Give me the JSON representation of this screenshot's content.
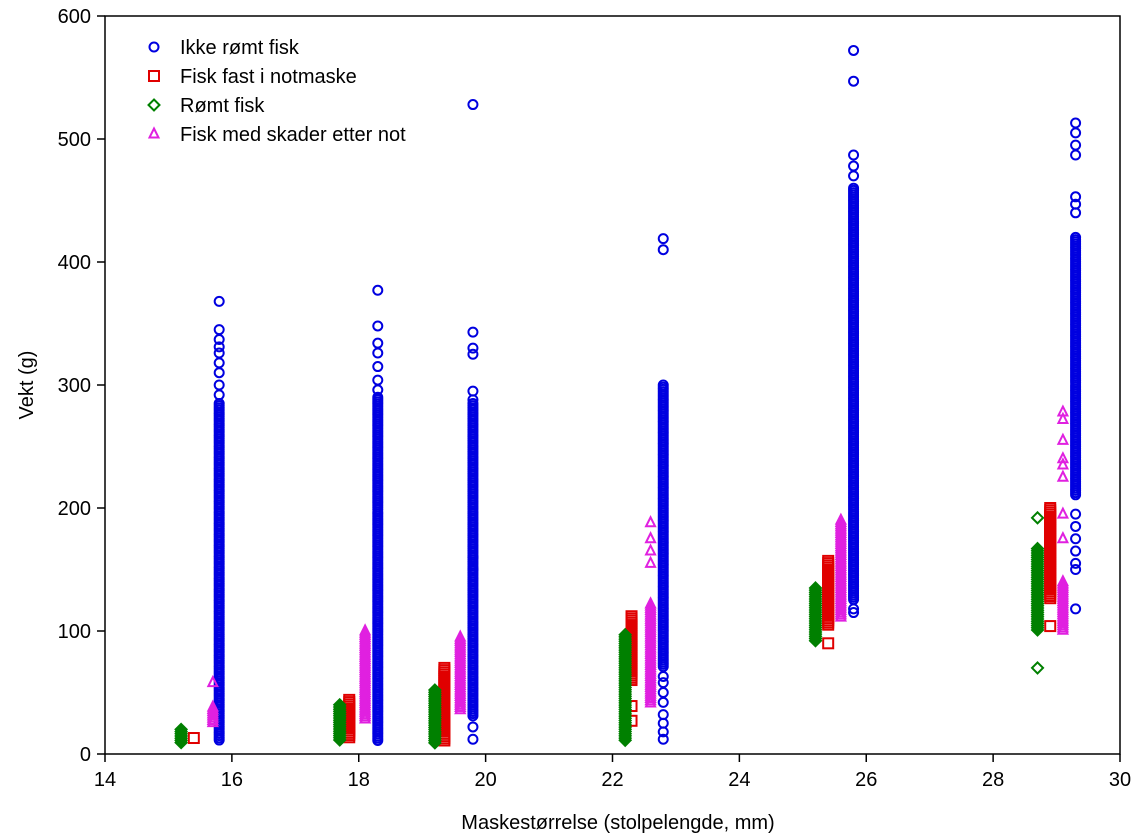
{
  "chart_data": {
    "type": "scatter",
    "title": "",
    "xlabel": "Maskestørrelse (stolpelengde, mm)",
    "ylabel": "Vekt (g)",
    "xlim": [
      14,
      30
    ],
    "ylim": [
      0,
      600
    ],
    "xticks": [
      "14",
      "16",
      "18",
      "20",
      "22",
      "24",
      "26",
      "28",
      "30"
    ],
    "yticks": [
      "0",
      "100",
      "200",
      "300",
      "400",
      "500",
      "600"
    ],
    "grid": false,
    "legend_position": "top-left",
    "series": [
      {
        "name": "Ikke rømt fisk",
        "marker": "circle",
        "color": "#0000e0",
        "groups": [
          {
            "x": 15.8,
            "y_min": 10,
            "y_max": 285,
            "outliers": [
              292,
              300,
              310,
              318,
              326,
              331,
              337,
              345,
              368
            ]
          },
          {
            "x": 18.3,
            "y_min": 10,
            "y_max": 290,
            "outliers": [
              296,
              304,
              315,
              326,
              334,
              348,
              377
            ]
          },
          {
            "x": 19.8,
            "y_min": 30,
            "y_max": 285,
            "outliers": [
              12,
              22,
              150,
              160,
              288,
              295,
              325,
              330,
              343,
              528
            ]
          },
          {
            "x": 22.8,
            "y_min": 70,
            "y_max": 300,
            "outliers": [
              12,
              18,
              25,
              32,
              42,
              50,
              58,
              63,
              410,
              419
            ]
          },
          {
            "x": 25.8,
            "y_min": 125,
            "y_max": 460,
            "outliers": [
              115,
              118,
              470,
              478,
              487,
              547,
              572
            ]
          },
          {
            "x": 29.3,
            "y_min": 210,
            "y_max": 420,
            "outliers": [
              118,
              150,
              155,
              165,
              175,
              185,
              195,
              440,
              447,
              453,
              487,
              495,
              505,
              513
            ]
          }
        ]
      },
      {
        "name": "Fisk fast i notmaske",
        "marker": "square",
        "color": "#e00000",
        "groups": [
          {
            "x": 15.4,
            "y_min": 13,
            "y_max": 13,
            "outliers": []
          },
          {
            "x": 17.85,
            "y_min": 13,
            "y_max": 44,
            "outliers": []
          },
          {
            "x": 19.35,
            "y_min": 10,
            "y_max": 70,
            "outliers": []
          },
          {
            "x": 22.3,
            "y_min": 60,
            "y_max": 112,
            "outliers": [
              27,
              39
            ]
          },
          {
            "x": 25.4,
            "y_min": 105,
            "y_max": 157,
            "outliers": [
              90
            ]
          },
          {
            "x": 28.9,
            "y_min": 125,
            "y_max": 200,
            "outliers": [
              104
            ]
          }
        ]
      },
      {
        "name": "Rømt fisk",
        "marker": "diamond",
        "color": "#008000",
        "groups": [
          {
            "x": 15.2,
            "y_min": 8,
            "y_max": 20,
            "outliers": []
          },
          {
            "x": 17.7,
            "y_min": 10,
            "y_max": 40,
            "outliers": []
          },
          {
            "x": 19.2,
            "y_min": 8,
            "y_max": 52,
            "outliers": []
          },
          {
            "x": 22.2,
            "y_min": 10,
            "y_max": 97,
            "outliers": []
          },
          {
            "x": 25.2,
            "y_min": 92,
            "y_max": 135,
            "outliers": []
          },
          {
            "x": 28.7,
            "y_min": 100,
            "y_max": 167,
            "outliers": [
              70,
              192
            ]
          }
        ]
      },
      {
        "name": "Fisk med skader etter not",
        "marker": "triangle",
        "color": "#e020e0",
        "groups": [
          {
            "x": 15.7,
            "y_min": 25,
            "y_max": 38,
            "outliers": [
              58
            ]
          },
          {
            "x": 18.1,
            "y_min": 27,
            "y_max": 100,
            "outliers": []
          },
          {
            "x": 19.6,
            "y_min": 35,
            "y_max": 95,
            "outliers": []
          },
          {
            "x": 22.6,
            "y_min": 40,
            "y_max": 122,
            "outliers": [
              155,
              165,
              175,
              188
            ]
          },
          {
            "x": 25.6,
            "y_min": 110,
            "y_max": 190,
            "outliers": []
          },
          {
            "x": 29.1,
            "y_min": 100,
            "y_max": 140,
            "outliers": [
              175,
              195,
              225,
              235,
              240,
              255,
              272,
              278
            ]
          }
        ]
      }
    ]
  }
}
